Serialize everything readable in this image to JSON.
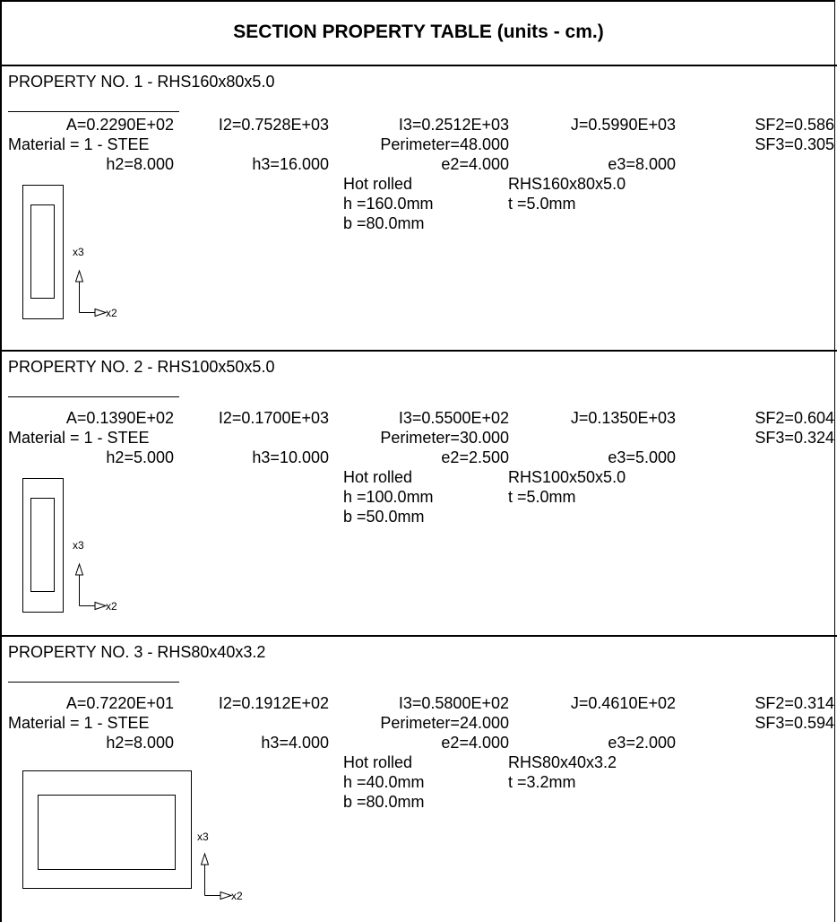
{
  "title": "SECTION PROPERTY TABLE (units - cm.)",
  "axis_labels": {
    "vertical": "x3",
    "horizontal": "x2"
  },
  "properties": [
    {
      "heading": "PROPERTY NO. 1 - RHS160x80x5.0",
      "A": "A=0.2290E+02",
      "I2": "I2=0.7528E+03",
      "I3": "I3=0.2512E+03",
      "J": "J=0.5990E+03",
      "SF2": "SF2=0.586",
      "material": "Material = 1 - STEE",
      "perimeter": "Perimeter=48.000",
      "SF3": "SF3=0.305",
      "h2": "h2=8.000",
      "h3": "h3=16.000",
      "e2": "e2=4.000",
      "e3": "e3=8.000",
      "process": "Hot rolled",
      "designation": "RHS160x80x5.0",
      "h": "h =160.0mm",
      "t": "t =5.0mm",
      "b": "b =80.0mm",
      "shape_orientation": "portrait"
    },
    {
      "heading": "PROPERTY NO. 2 - RHS100x50x5.0",
      "A": "A=0.1390E+02",
      "I2": "I2=0.1700E+03",
      "I3": "I3=0.5500E+02",
      "J": "J=0.1350E+03",
      "SF2": "SF2=0.604",
      "material": "Material = 1 - STEE",
      "perimeter": "Perimeter=30.000",
      "SF3": "SF3=0.324",
      "h2": "h2=5.000",
      "h3": "h3=10.000",
      "e2": "e2=2.500",
      "e3": "e3=5.000",
      "process": "Hot rolled",
      "designation": "RHS100x50x5.0",
      "h": "h =100.0mm",
      "t": "t =5.0mm",
      "b": "b =50.0mm",
      "shape_orientation": "portrait"
    },
    {
      "heading": "PROPERTY NO. 3 - RHS80x40x3.2",
      "A": "A=0.7220E+01",
      "I2": "I2=0.1912E+02",
      "I3": "I3=0.5800E+02",
      "J": "J=0.4610E+02",
      "SF2": "SF2=0.314",
      "material": "Material = 1 - STEE",
      "perimeter": "Perimeter=24.000",
      "SF3": "SF3=0.594",
      "h2": "h2=8.000",
      "h3": "h3=4.000",
      "e2": "e2=4.000",
      "e3": "e3=2.000",
      "process": "Hot rolled",
      "designation": "RHS80x40x3.2",
      "h": "h =40.0mm",
      "t": "t =3.2mm",
      "b": "b =80.0mm",
      "shape_orientation": "landscape"
    }
  ]
}
